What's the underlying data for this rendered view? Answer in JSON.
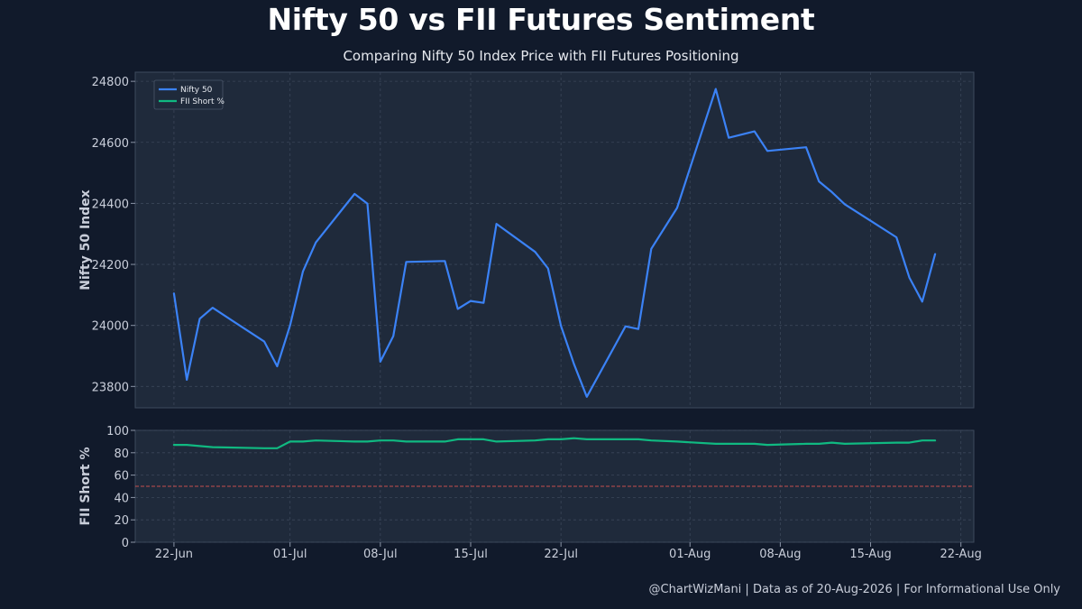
{
  "title": "Nifty 50 vs FII Futures Sentiment",
  "subtitle": "Comparing Nifty 50 Index Price with FII Futures Positioning",
  "footer": "@ChartWizMani | Data as of 20-Aug-2026 | For Informational Use Only",
  "colors": {
    "background": "#111a2b",
    "panel": "#1f2a3b",
    "grid": "#3a4659",
    "nifty": "#3b82f6",
    "fii": "#10b981",
    "reference": "#d9534f"
  },
  "chart_data": [
    {
      "type": "line",
      "ylabel": "Nifty 50 Index",
      "ylim": [
        23730,
        24830
      ],
      "yticks": [
        23800,
        24000,
        24200,
        24400,
        24600,
        24800
      ],
      "xlim": [
        "2026-06-19",
        "2026-08-23"
      ],
      "xticks": [
        {
          "date": "2026-06-22",
          "label": "22-Jun"
        },
        {
          "date": "2026-07-01",
          "label": "01-Jul"
        },
        {
          "date": "2026-07-08",
          "label": "08-Jul"
        },
        {
          "date": "2026-07-15",
          "label": "15-Jul"
        },
        {
          "date": "2026-07-22",
          "label": "22-Jul"
        },
        {
          "date": "2026-08-01",
          "label": "01-Aug"
        },
        {
          "date": "2026-08-08",
          "label": "08-Aug"
        },
        {
          "date": "2026-08-15",
          "label": "15-Aug"
        },
        {
          "date": "2026-08-22",
          "label": "22-Aug"
        }
      ],
      "grid": true,
      "legend": "top-left",
      "series": [
        {
          "name": "Nifty 50",
          "x": [
            "2026-06-22",
            "2026-06-23",
            "2026-06-24",
            "2026-06-25",
            "2026-06-29",
            "2026-06-30",
            "2026-07-01",
            "2026-07-02",
            "2026-07-03",
            "2026-07-06",
            "2026-07-07",
            "2026-07-08",
            "2026-07-09",
            "2026-07-10",
            "2026-07-13",
            "2026-07-14",
            "2026-07-15",
            "2026-07-16",
            "2026-07-17",
            "2026-07-20",
            "2026-07-21",
            "2026-07-22",
            "2026-07-23",
            "2026-07-24",
            "2026-07-27",
            "2026-07-28",
            "2026-07-29",
            "2026-07-31",
            "2026-08-03",
            "2026-08-04",
            "2026-08-06",
            "2026-08-07",
            "2026-08-10",
            "2026-08-11",
            "2026-08-12",
            "2026-08-13",
            "2026-08-17",
            "2026-08-18",
            "2026-08-19",
            "2026-08-20"
          ],
          "values": [
            24105,
            23822,
            24022,
            24058,
            23947,
            23866,
            24000,
            24177,
            24272,
            24431,
            24399,
            23881,
            23965,
            24208,
            24211,
            24054,
            24080,
            24074,
            24333,
            24241,
            24187,
            23998,
            23874,
            23766,
            23997,
            23988,
            24251,
            24385,
            24775,
            24615,
            24636,
            24572,
            24584,
            24472,
            24437,
            24397,
            24289,
            24157,
            24078,
            24234
          ]
        }
      ]
    },
    {
      "type": "line",
      "ylabel": "FII Short %",
      "ylim": [
        0,
        100
      ],
      "yticks": [
        0,
        20,
        40,
        60,
        80,
        100
      ],
      "reference_line": 50,
      "grid": true,
      "series": [
        {
          "name": "FII Short %",
          "x": [
            "2026-06-22",
            "2026-06-23",
            "2026-06-24",
            "2026-06-25",
            "2026-06-29",
            "2026-06-30",
            "2026-07-01",
            "2026-07-02",
            "2026-07-03",
            "2026-07-06",
            "2026-07-07",
            "2026-07-08",
            "2026-07-09",
            "2026-07-10",
            "2026-07-13",
            "2026-07-14",
            "2026-07-15",
            "2026-07-16",
            "2026-07-17",
            "2026-07-20",
            "2026-07-21",
            "2026-07-22",
            "2026-07-23",
            "2026-07-24",
            "2026-07-27",
            "2026-07-28",
            "2026-07-29",
            "2026-07-31",
            "2026-08-03",
            "2026-08-04",
            "2026-08-06",
            "2026-08-07",
            "2026-08-10",
            "2026-08-11",
            "2026-08-12",
            "2026-08-13",
            "2026-08-17",
            "2026-08-18",
            "2026-08-19",
            "2026-08-20"
          ],
          "values": [
            87,
            87,
            86,
            85,
            84,
            84,
            90,
            90,
            91,
            90,
            90,
            91,
            91,
            90,
            90,
            92,
            92,
            92,
            90,
            91,
            92,
            92,
            93,
            92,
            92,
            92,
            91,
            90,
            88,
            88,
            88,
            87,
            88,
            88,
            89,
            88,
            89,
            89,
            91,
            91
          ]
        }
      ]
    }
  ]
}
